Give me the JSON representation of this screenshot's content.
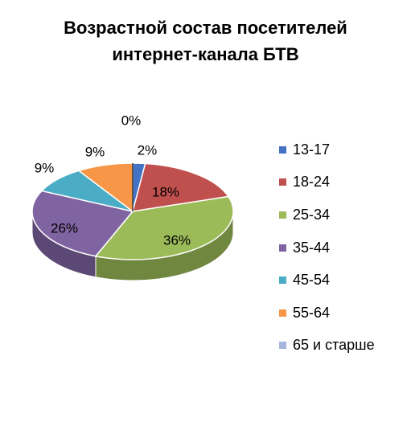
{
  "chart_data": {
    "type": "pie",
    "title": [
      "Возрастной состав посетителей",
      "интернет-канала БТВ"
    ],
    "categories": [
      "13-17",
      "18-24",
      "25-34",
      "35-44",
      "45-54",
      "55-64",
      "65 и старше"
    ],
    "values": [
      2,
      18,
      36,
      26,
      9,
      9,
      0
    ],
    "labels": [
      "2%",
      "18%",
      "36%",
      "26%",
      "9%",
      "9%",
      "0%"
    ],
    "colors": [
      "#4472c4",
      "#c0504d",
      "#9bbb59",
      "#8064a2",
      "#4bacc6",
      "#f79646",
      "#a5b5dc"
    ],
    "legend_position": "right",
    "style": "3d-pie"
  }
}
